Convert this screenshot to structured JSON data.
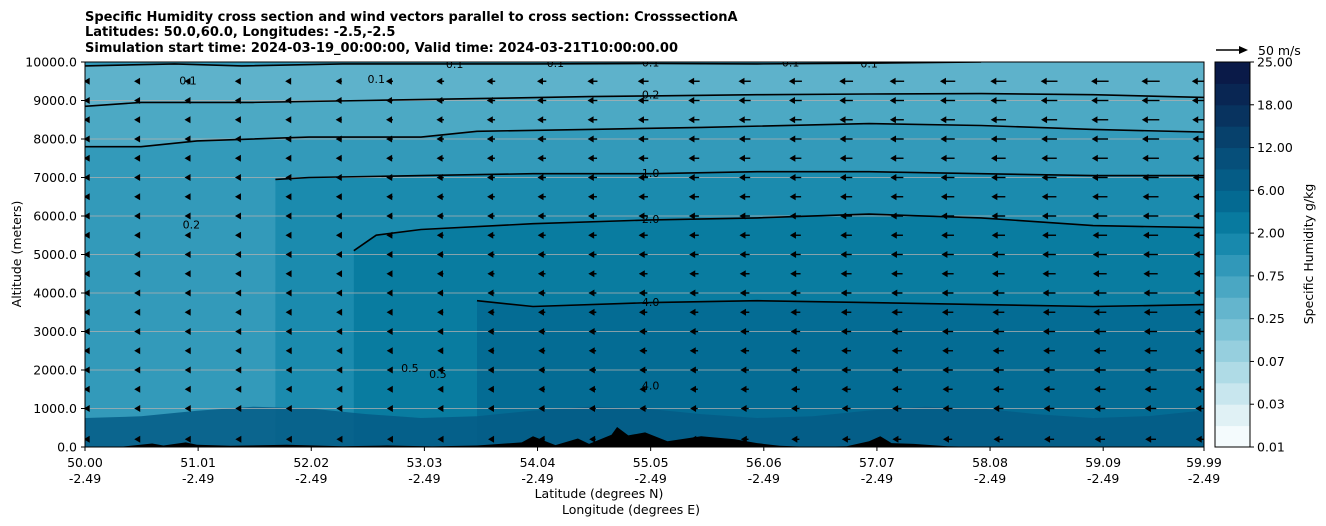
{
  "chart_data": {
    "type": "contourf",
    "title_lines": [
      "Specific Humidity cross section and wind vectors parallel to cross section: CrosssectionA",
      "Latitudes: 50.0,60.0, Longitudes: -2.5,-2.5",
      "Simulation start time: 2024-03-19_00:00:00, Valid time: 2024-03-21T10:00:00.00"
    ],
    "xlabel_lines": [
      "Latitude (degrees N)",
      "Longitude (degrees E)"
    ],
    "ylabel": "Altitude (meters)",
    "xlim": [
      50.0,
      59.99
    ],
    "ylim": [
      0,
      10000
    ],
    "x_ticks": [
      {
        "lat": 50.0,
        "lat_label": "50.00",
        "lon_label": "-2.49"
      },
      {
        "lat": 51.01,
        "lat_label": "51.01",
        "lon_label": "-2.49"
      },
      {
        "lat": 52.02,
        "lat_label": "52.02",
        "lon_label": "-2.49"
      },
      {
        "lat": 53.03,
        "lat_label": "53.03",
        "lon_label": "-2.49"
      },
      {
        "lat": 54.04,
        "lat_label": "54.04",
        "lon_label": "-2.49"
      },
      {
        "lat": 55.05,
        "lat_label": "55.05",
        "lon_label": "-2.49"
      },
      {
        "lat": 56.06,
        "lat_label": "56.06",
        "lon_label": "-2.49"
      },
      {
        "lat": 57.07,
        "lat_label": "57.07",
        "lon_label": "-2.49"
      },
      {
        "lat": 58.08,
        "lat_label": "58.08",
        "lon_label": "-2.49"
      },
      {
        "lat": 59.09,
        "lat_label": "59.09",
        "lon_label": "-2.49"
      },
      {
        "lat": 59.99,
        "lat_label": "59.99",
        "lon_label": "-2.49"
      }
    ],
    "y_ticks": [
      {
        "value": 0,
        "label": "0.0"
      },
      {
        "value": 1000,
        "label": "1000.0"
      },
      {
        "value": 2000,
        "label": "2000.0"
      },
      {
        "value": 3000,
        "label": "3000.0"
      },
      {
        "value": 4000,
        "label": "4000.0"
      },
      {
        "value": 5000,
        "label": "5000.0"
      },
      {
        "value": 6000,
        "label": "6000.0"
      },
      {
        "value": 7000,
        "label": "7000.0"
      },
      {
        "value": 8000,
        "label": "8000.0"
      },
      {
        "value": 9000,
        "label": "9000.0"
      },
      {
        "value": 10000,
        "label": "10000.0"
      }
    ],
    "grid": "horizontal",
    "colorbar": {
      "label": "Specific Humidity g/kg",
      "levels": [
        0.01,
        0.02,
        0.03,
        0.05,
        0.07,
        0.1,
        0.25,
        0.5,
        0.75,
        1.0,
        2.0,
        4.0,
        6.0,
        9.0,
        12.0,
        15.0,
        18.0,
        21.0,
        25.0
      ],
      "tick_labels": [
        "0.01",
        "0.03",
        "0.07",
        "0.25",
        "0.75",
        "2.00",
        "6.00",
        "12.00",
        "18.00",
        "25.00"
      ],
      "colors": [
        "#f4fbfd",
        "#e0f1f5",
        "#c8e6ee",
        "#afdbe6",
        "#96cfde",
        "#7dc3d6",
        "#64b5cd",
        "#4aa7c3",
        "#3198b9",
        "#1889ad",
        "#087a9f",
        "#046a92",
        "#055c86",
        "#064f7a",
        "#07416c",
        "#08335f",
        "#092653",
        "#0a1a48"
      ]
    },
    "contours": [
      {
        "label": "0.1",
        "level": 0.1,
        "profile": [
          [
            50.0,
            9900
          ],
          [
            50.8,
            9950
          ],
          [
            51.4,
            9900
          ],
          [
            52.3,
            9950
          ],
          [
            53.0,
            9950
          ],
          [
            54.0,
            9950
          ],
          [
            55.05,
            9960
          ],
          [
            56.0,
            9950
          ],
          [
            57.0,
            9970
          ],
          [
            58.0,
            10000
          ]
        ],
        "label_at": [
          [
            50.92,
            9520
          ],
          [
            52.6,
            9560
          ],
          [
            53.3,
            9950
          ],
          [
            54.2,
            9980
          ],
          [
            55.05,
            9990
          ],
          [
            56.3,
            9990
          ],
          [
            57.0,
            9960
          ]
        ]
      },
      {
        "label": "0.2",
        "level": 0.2,
        "profile": [
          [
            50.0,
            8850
          ],
          [
            50.5,
            8950
          ],
          [
            51.5,
            8950
          ],
          [
            52.5,
            9000
          ],
          [
            53.5,
            9050
          ],
          [
            54.5,
            9100
          ],
          [
            55.05,
            9120
          ],
          [
            56.0,
            9150
          ],
          [
            57.0,
            9170
          ],
          [
            58.0,
            9180
          ],
          [
            59.0,
            9150
          ],
          [
            59.99,
            9080
          ]
        ],
        "label_at": [
          [
            55.05,
            9150
          ],
          [
            50.95,
            5780
          ]
        ]
      },
      {
        "label": "0.5",
        "level": 0.5,
        "profile": [
          [
            50.0,
            7800
          ],
          [
            50.5,
            7800
          ],
          [
            51.0,
            7950
          ],
          [
            52.0,
            8050
          ],
          [
            53.0,
            8050
          ],
          [
            53.5,
            8200
          ],
          [
            54.5,
            8250
          ],
          [
            55.5,
            8300
          ],
          [
            57.0,
            8400
          ],
          [
            58.0,
            8350
          ],
          [
            59.0,
            8250
          ],
          [
            59.99,
            8180
          ]
        ],
        "label_at": [
          [
            52.9,
            2050
          ],
          [
            53.15,
            1900
          ]
        ]
      },
      {
        "label": "1.0",
        "level": 1.0,
        "profile": [
          [
            51.7,
            6950
          ],
          [
            52.0,
            7000
          ],
          [
            53.0,
            7050
          ],
          [
            54.0,
            7100
          ],
          [
            55.05,
            7100
          ],
          [
            56.0,
            7150
          ],
          [
            57.0,
            7150
          ],
          [
            58.0,
            7100
          ],
          [
            59.0,
            7050
          ],
          [
            59.99,
            7050
          ]
        ],
        "label_at": [
          [
            55.05,
            7120
          ]
        ]
      },
      {
        "label": "2.0",
        "level": 2.0,
        "profile": [
          [
            52.4,
            5100
          ],
          [
            52.6,
            5500
          ],
          [
            53.0,
            5650
          ],
          [
            54.0,
            5800
          ],
          [
            55.05,
            5900
          ],
          [
            56.0,
            5950
          ],
          [
            57.0,
            6050
          ],
          [
            58.0,
            5950
          ],
          [
            59.0,
            5750
          ],
          [
            59.99,
            5700
          ]
        ],
        "label_at": [
          [
            55.05,
            5920
          ]
        ]
      },
      {
        "label": "4.0",
        "level": 4.0,
        "profile": [
          [
            53.5,
            3800
          ],
          [
            54.0,
            3650
          ],
          [
            55.05,
            3750
          ],
          [
            56.0,
            3800
          ],
          [
            57.0,
            3750
          ],
          [
            58.0,
            3700
          ],
          [
            59.0,
            3650
          ],
          [
            59.99,
            3700
          ]
        ],
        "label_at": [
          [
            55.05,
            3770
          ],
          [
            55.05,
            1600
          ]
        ]
      }
    ],
    "wind_vector_reference": {
      "label": "50 m/s",
      "speed": 50
    },
    "wind_vectors": {
      "x_start": 50.0,
      "x_step": 0.453,
      "y_levels": [
        200,
        1000,
        1500,
        2000,
        2500,
        3000,
        3500,
        4000,
        4500,
        5000,
        5500,
        6000,
        6500,
        7000,
        7500,
        8000,
        8500,
        9000,
        9500
      ],
      "u_range": [
        -2,
        -15
      ]
    },
    "terrain": [
      [
        50.0,
        0
      ],
      [
        50.3,
        0
      ],
      [
        50.6,
        90
      ],
      [
        50.7,
        40
      ],
      [
        50.9,
        120
      ],
      [
        51.0,
        60
      ],
      [
        51.3,
        30
      ],
      [
        51.8,
        60
      ],
      [
        52.3,
        20
      ],
      [
        52.7,
        40
      ],
      [
        53.1,
        15
      ],
      [
        53.5,
        40
      ],
      [
        53.9,
        120
      ],
      [
        54.0,
        280
      ],
      [
        54.1,
        160
      ],
      [
        54.2,
        50
      ],
      [
        54.4,
        220
      ],
      [
        54.5,
        80
      ],
      [
        54.7,
        320
      ],
      [
        54.75,
        520
      ],
      [
        54.85,
        300
      ],
      [
        55.0,
        380
      ],
      [
        55.2,
        150
      ],
      [
        55.5,
        280
      ],
      [
        55.8,
        200
      ],
      [
        56.0,
        100
      ],
      [
        56.2,
        30
      ],
      [
        56.5,
        0
      ],
      [
        56.8,
        20
      ],
      [
        57.0,
        150
      ],
      [
        57.1,
        280
      ],
      [
        57.2,
        100
      ],
      [
        57.4,
        80
      ],
      [
        57.7,
        20
      ],
      [
        58.0,
        0
      ],
      [
        59.99,
        0
      ]
    ]
  }
}
